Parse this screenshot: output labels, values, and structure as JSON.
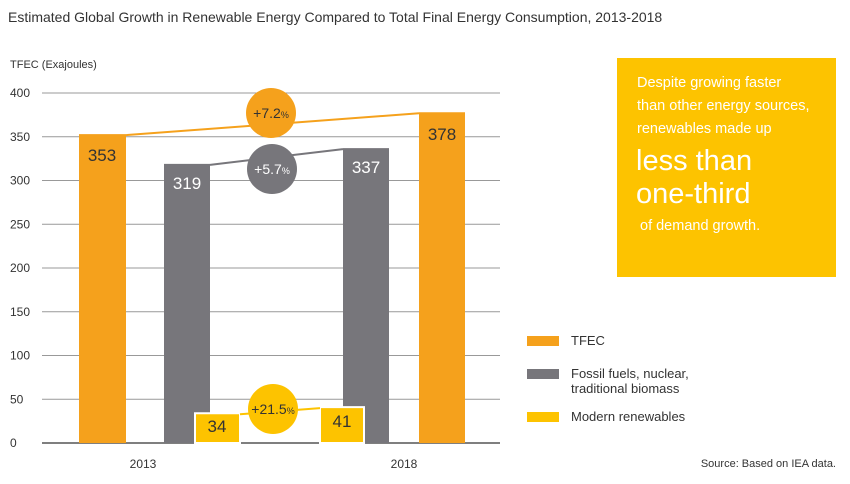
{
  "title": "Estimated Global Growth in Renewable Energy Compared to Total Final Energy Consumption, 2013-2018",
  "source": "Source: Based on IEA data.",
  "colors": {
    "tfec": "#F5A11C",
    "fossil": "#77767B",
    "renewables": "#FDC300",
    "callout_bg": "#FDC300"
  },
  "callout": {
    "line1": "Despite growing faster",
    "line2": "than other energy sources,",
    "line3": "renewables made up",
    "big1": "less than",
    "big2": "one-third",
    "line4": "of demand growth."
  },
  "legend": [
    {
      "label": "TFEC",
      "color": "#F5A11C"
    },
    {
      "label_line1": "Fossil fuels, nuclear,",
      "label_line2": "traditional biomass",
      "color": "#77767B"
    },
    {
      "label": "Modern renewables",
      "color": "#FDC300"
    }
  ],
  "chart_data": {
    "type": "bar",
    "title": "Estimated Global Growth in Renewable Energy Compared to Total Final Energy Consumption, 2013-2018",
    "ylabel": "TFEC (Exajoules)",
    "xlabel": "",
    "categories": [
      "2013",
      "2018"
    ],
    "ylim": [
      0,
      400
    ],
    "yticks": [
      0,
      50,
      100,
      150,
      200,
      250,
      300,
      350,
      400
    ],
    "grid": true,
    "legend_position": "right",
    "series": [
      {
        "name": "TFEC",
        "values": [
          353,
          378
        ],
        "labels": [
          "353",
          "378"
        ]
      },
      {
        "name": "Fossil fuels, nuclear, traditional biomass",
        "values": [
          319,
          337
        ],
        "labels": [
          "319",
          "337"
        ]
      },
      {
        "name": "Modern renewables",
        "values": [
          34,
          41
        ],
        "labels": [
          "34",
          "41"
        ]
      }
    ],
    "growth_annotations": [
      {
        "series": "TFEC",
        "value": "+7.2",
        "unit": "%"
      },
      {
        "series": "Fossil fuels, nuclear, traditional biomass",
        "value": "+5.7",
        "unit": "%"
      },
      {
        "series": "Modern renewables",
        "value": "+21.5",
        "unit": "%"
      }
    ]
  }
}
